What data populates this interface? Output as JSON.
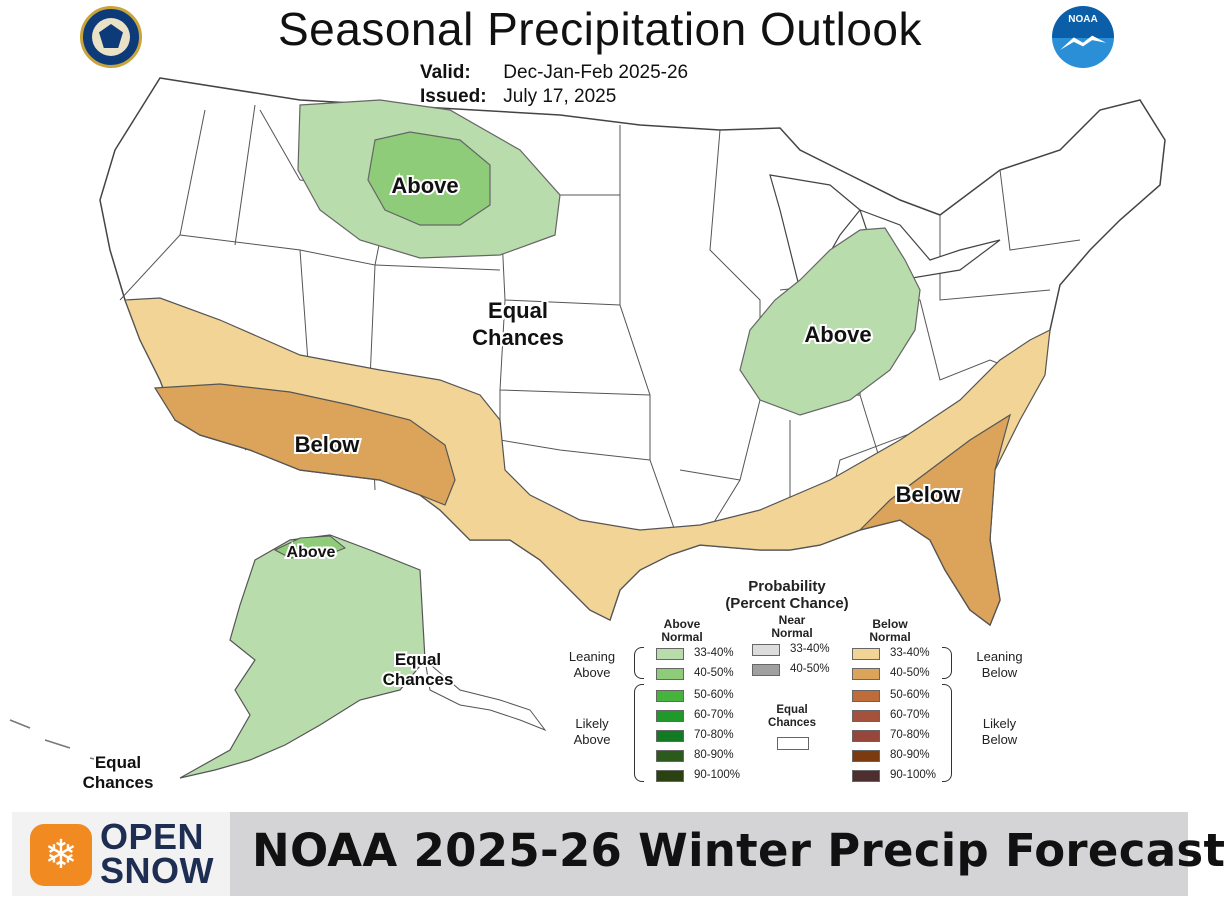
{
  "header": {
    "title": "Seasonal Precipitation Outlook",
    "valid_label": "Valid:",
    "valid_value": "Dec-Jan-Feb 2025-26",
    "issued_label": "Issued:",
    "issued_value": "July 17, 2025",
    "seal_icon": "department-of-commerce-seal-icon",
    "noaa_icon": "noaa-logo-icon",
    "noaa_text": "NOAA"
  },
  "map": {
    "labels": {
      "above_north_plains": "Above",
      "above_ohio_valley": "Above",
      "above_alaska": "Above",
      "below_southwest": "Below",
      "below_southeast": "Below",
      "equal_chances_line1": "Equal",
      "equal_chances_line2": "Chances",
      "alaska_equal_line1": "Equal",
      "alaska_equal_line2": "Chances",
      "aleutian_equal_line1": "Equal",
      "aleutian_equal_line2": "Chances"
    },
    "colors": {
      "above_33_40": "#b9dcac",
      "above_40_50": "#8fcc7a",
      "below_33_40": "#f2d596",
      "below_40_50": "#dca35a",
      "land": "#ffffff",
      "border": "#444444"
    }
  },
  "legend": {
    "title_line1": "Probability",
    "title_line2": "(Percent Chance)",
    "above_head_line1": "Above",
    "above_head_line2": "Normal",
    "near_head_line1": "Near",
    "near_head_line2": "Normal",
    "below_head_line1": "Below",
    "below_head_line2": "Normal",
    "leaning_above_line1": "Leaning",
    "leaning_above_line2": "Above",
    "leaning_below_line1": "Leaning",
    "leaning_below_line2": "Below",
    "likely_above_line1": "Likely",
    "likely_above_line2": "Above",
    "likely_below_line1": "Likely",
    "likely_below_line2": "Below",
    "equal_line1": "Equal",
    "equal_line2": "Chances",
    "above_rows": [
      {
        "label": "33-40%",
        "color": "#b9dcac"
      },
      {
        "label": "40-50%",
        "color": "#8fcc7a"
      },
      {
        "label": "50-60%",
        "color": "#45b33c"
      },
      {
        "label": "60-70%",
        "color": "#1f9a2a"
      },
      {
        "label": "70-80%",
        "color": "#117a22"
      },
      {
        "label": "80-90%",
        "color": "#2c5a1c"
      },
      {
        "label": "90-100%",
        "color": "#2a4212"
      }
    ],
    "near_rows": [
      {
        "label": "33-40%",
        "color": "#dcdcdc"
      },
      {
        "label": "40-50%",
        "color": "#a0a0a0"
      }
    ],
    "below_rows": [
      {
        "label": "33-40%",
        "color": "#f2d596"
      },
      {
        "label": "40-50%",
        "color": "#dca35a"
      },
      {
        "label": "50-60%",
        "color": "#bf6b3a"
      },
      {
        "label": "60-70%",
        "color": "#a5523d"
      },
      {
        "label": "70-80%",
        "color": "#96463a"
      },
      {
        "label": "80-90%",
        "color": "#7b3a10"
      },
      {
        "label": "90-100%",
        "color": "#4e2e2e"
      }
    ]
  },
  "footer": {
    "brand_line1": "OPEN",
    "brand_line2": "SNOW",
    "brand_icon": "opensnow-snowflake-icon",
    "brand_color": "#f28a22",
    "title": "NOAA 2025-26 Winter Precip Forecast"
  }
}
